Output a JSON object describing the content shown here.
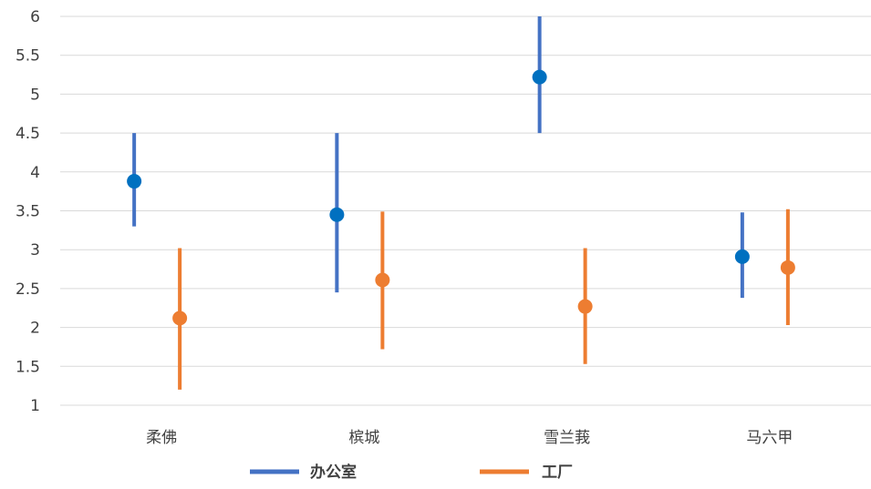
{
  "chart_data": {
    "type": "scatter",
    "title": "",
    "xlabel": "",
    "ylabel": "",
    "categories": [
      "柔佛",
      "槟城",
      "雪兰莪",
      "马六甲"
    ],
    "ylim": [
      1,
      6
    ],
    "yticks": [
      "1",
      "1.5",
      "2",
      "2.5",
      "3",
      "3.5",
      "4",
      "4.5",
      "5",
      "5.5",
      "6"
    ],
    "grid": true,
    "legend_position": "bottom",
    "series": [
      {
        "name": "办公室",
        "color": "#4472C4",
        "marker_color": "#0070C0",
        "values": [
          3.88,
          3.45,
          5.22,
          2.91
        ],
        "low": [
          3.3,
          2.45,
          4.5,
          2.38
        ],
        "high": [
          4.5,
          4.5,
          6.0,
          3.48
        ]
      },
      {
        "name": "工厂",
        "color": "#ED7D31",
        "marker_color": "#ED7D31",
        "values": [
          2.12,
          2.61,
          2.27,
          2.77
        ],
        "low": [
          1.2,
          1.72,
          1.53,
          2.03
        ],
        "high": [
          3.02,
          3.49,
          3.02,
          3.52
        ]
      }
    ]
  }
}
